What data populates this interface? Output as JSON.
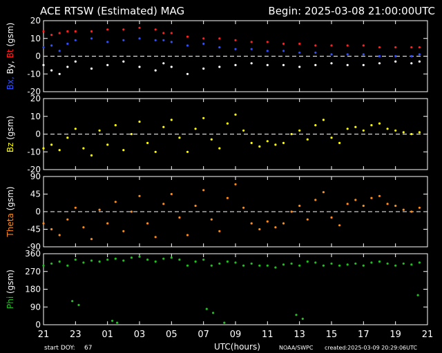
{
  "header": {
    "title": "ACE RTSW (Estimated) MAG",
    "begin": "Begin: 2025-03-08 21:00:00UTC"
  },
  "footer": {
    "start_doy_label": "start DOY:",
    "start_doy": "67",
    "xlabel": "UTC(hours)",
    "source": "NOAA/SWPC",
    "created": "created:2025-03-09 20:29:06UTC"
  },
  "x_ticks": [
    "21",
    "23",
    "01",
    "03",
    "05",
    "07",
    "09",
    "11",
    "13",
    "15",
    "17",
    "19",
    "21"
  ],
  "colors": {
    "bt": "#ff2020",
    "bx": "#3050ff",
    "by": "#ffffff",
    "bz": "#ffff00",
    "theta": "#ff8c1a",
    "phi": "#20c020",
    "axis": "#ffffff",
    "background": "#000000"
  },
  "chart_data": [
    {
      "type": "scatter",
      "panel": "btxy",
      "ylabel_parts": [
        {
          "text": "Bx,",
          "color": "#3050ff"
        },
        {
          "text": " By,",
          "color": "#ffffff"
        },
        {
          "text": " Bt",
          "color": "#ff2020"
        },
        {
          "text": "  (gsm)",
          "color": "#ffffff"
        }
      ],
      "ylim": [
        -20,
        20
      ],
      "yticks": [
        -20,
        -10,
        0,
        10,
        20
      ],
      "xlim": [
        0,
        24
      ],
      "zero_line": true,
      "series": [
        {
          "name": "Bt",
          "color": "#ff2020",
          "points": [
            [
              0,
              14
            ],
            [
              0.5,
              12
            ],
            [
              1,
              13
            ],
            [
              1.5,
              14
            ],
            [
              2,
              14
            ],
            [
              3,
              14
            ],
            [
              4,
              15
            ],
            [
              5,
              15
            ],
            [
              6,
              16
            ],
            [
              7,
              15
            ],
            [
              7.5,
              13
            ],
            [
              8,
              13
            ],
            [
              9,
              11
            ],
            [
              10,
              10
            ],
            [
              11,
              10
            ],
            [
              12,
              9
            ],
            [
              13,
              8
            ],
            [
              14,
              8
            ],
            [
              15,
              7
            ],
            [
              16,
              7
            ],
            [
              17,
              6
            ],
            [
              18,
              6
            ],
            [
              19,
              6
            ],
            [
              20,
              6
            ],
            [
              21,
              5
            ],
            [
              22,
              5
            ],
            [
              23,
              5
            ],
            [
              23.5,
              5
            ]
          ]
        },
        {
          "name": "Bx",
          "color": "#3050ff",
          "points": [
            [
              0,
              5
            ],
            [
              0.5,
              6
            ],
            [
              1,
              3
            ],
            [
              1.5,
              7
            ],
            [
              2,
              9
            ],
            [
              3,
              10
            ],
            [
              4,
              8
            ],
            [
              5,
              9
            ],
            [
              6,
              10
            ],
            [
              7,
              9
            ],
            [
              7.5,
              9
            ],
            [
              8,
              8
            ],
            [
              9,
              6
            ],
            [
              10,
              7
            ],
            [
              11,
              5
            ],
            [
              12,
              4
            ],
            [
              13,
              4
            ],
            [
              14,
              3
            ],
            [
              15,
              3
            ],
            [
              16,
              2
            ],
            [
              17,
              2
            ],
            [
              18,
              1
            ],
            [
              19,
              1
            ],
            [
              20,
              1
            ],
            [
              21,
              0
            ],
            [
              22,
              0
            ],
            [
              23,
              0
            ],
            [
              23.5,
              1
            ]
          ]
        },
        {
          "name": "By",
          "color": "#ffffff",
          "points": [
            [
              0,
              -5
            ],
            [
              0.5,
              -8
            ],
            [
              1,
              -10
            ],
            [
              1.5,
              -6
            ],
            [
              2,
              -3
            ],
            [
              3,
              -7
            ],
            [
              4,
              -5
            ],
            [
              5,
              -3
            ],
            [
              6,
              -6
            ],
            [
              7,
              -8
            ],
            [
              7.5,
              -4
            ],
            [
              8,
              -6
            ],
            [
              9,
              -10
            ],
            [
              10,
              -7
            ],
            [
              11,
              -6
            ],
            [
              12,
              -5
            ],
            [
              13,
              -4
            ],
            [
              14,
              -5
            ],
            [
              15,
              -5
            ],
            [
              16,
              -6
            ],
            [
              17,
              -5
            ],
            [
              18,
              -4
            ],
            [
              19,
              -5
            ],
            [
              20,
              -5
            ],
            [
              21,
              -4
            ],
            [
              22,
              -3
            ],
            [
              23,
              -4
            ],
            [
              23.5,
              -3
            ]
          ]
        }
      ]
    },
    {
      "type": "scatter",
      "panel": "bz",
      "ylabel_parts": [
        {
          "text": "Bz",
          "color": "#ffff00"
        },
        {
          "text": "  (gsm)",
          "color": "#ffffff"
        }
      ],
      "ylim": [
        -20,
        20
      ],
      "yticks": [
        -20,
        -10,
        0,
        10,
        20
      ],
      "xlim": [
        0,
        24
      ],
      "zero_line": true,
      "series": [
        {
          "name": "Bz",
          "color": "#ffff00",
          "points": [
            [
              0,
              -8
            ],
            [
              0.5,
              -6
            ],
            [
              1,
              -9
            ],
            [
              1.5,
              -2
            ],
            [
              2,
              3
            ],
            [
              2.5,
              -8
            ],
            [
              3,
              -12
            ],
            [
              3.5,
              2
            ],
            [
              4,
              -6
            ],
            [
              4.5,
              5
            ],
            [
              5,
              -9
            ],
            [
              5.5,
              0
            ],
            [
              6,
              7
            ],
            [
              6.5,
              -5
            ],
            [
              7,
              -10
            ],
            [
              7.5,
              4
            ],
            [
              8,
              8
            ],
            [
              8.5,
              -2
            ],
            [
              9,
              -10
            ],
            [
              9.5,
              3
            ],
            [
              10,
              9
            ],
            [
              10.5,
              -3
            ],
            [
              11,
              -8
            ],
            [
              11.5,
              6
            ],
            [
              12,
              11
            ],
            [
              12.5,
              2
            ],
            [
              13,
              -5
            ],
            [
              13.5,
              -7
            ],
            [
              14,
              -4
            ],
            [
              14.5,
              -6
            ],
            [
              15,
              -5
            ],
            [
              15.5,
              0
            ],
            [
              16,
              2
            ],
            [
              16.5,
              -3
            ],
            [
              17,
              5
            ],
            [
              17.5,
              8
            ],
            [
              18,
              -2
            ],
            [
              18.5,
              -5
            ],
            [
              19,
              3
            ],
            [
              19.5,
              4
            ],
            [
              20,
              2
            ],
            [
              20.5,
              5
            ],
            [
              21,
              6
            ],
            [
              21.5,
              3
            ],
            [
              22,
              2
            ],
            [
              22.5,
              1
            ],
            [
              23,
              0
            ],
            [
              23.5,
              1
            ]
          ]
        }
      ]
    },
    {
      "type": "scatter",
      "panel": "theta",
      "ylabel_parts": [
        {
          "text": "Theta",
          "color": "#ff8c1a"
        },
        {
          "text": "  (gsm)",
          "color": "#ffffff"
        }
      ],
      "ylim": [
        -90,
        90
      ],
      "yticks": [
        -90,
        -45,
        0,
        45,
        90
      ],
      "xlim": [
        0,
        24
      ],
      "zero_line": true,
      "series": [
        {
          "name": "Theta",
          "color": "#ff8c1a",
          "points": [
            [
              0,
              -30
            ],
            [
              0.5,
              -45
            ],
            [
              1,
              -60
            ],
            [
              1.5,
              -20
            ],
            [
              2,
              10
            ],
            [
              2.5,
              -40
            ],
            [
              3,
              -70
            ],
            [
              3.5,
              5
            ],
            [
              4,
              -30
            ],
            [
              4.5,
              25
            ],
            [
              5,
              -50
            ],
            [
              5.5,
              0
            ],
            [
              6,
              40
            ],
            [
              6.5,
              -30
            ],
            [
              7,
              -65
            ],
            [
              7.5,
              20
            ],
            [
              8,
              45
            ],
            [
              8.5,
              -15
            ],
            [
              9,
              -60
            ],
            [
              9.5,
              15
            ],
            [
              10,
              55
            ],
            [
              10.5,
              -20
            ],
            [
              11,
              -50
            ],
            [
              11.5,
              35
            ],
            [
              12,
              70
            ],
            [
              12.5,
              10
            ],
            [
              13,
              -30
            ],
            [
              13.5,
              -45
            ],
            [
              14,
              -25
            ],
            [
              14.5,
              -40
            ],
            [
              15,
              -30
            ],
            [
              15.5,
              0
            ],
            [
              16,
              15
            ],
            [
              16.5,
              -20
            ],
            [
              17,
              30
            ],
            [
              17.5,
              50
            ],
            [
              18,
              -15
            ],
            [
              18.5,
              -35
            ],
            [
              19,
              20
            ],
            [
              19.5,
              30
            ],
            [
              20,
              15
            ],
            [
              20.5,
              35
            ],
            [
              21,
              40
            ],
            [
              21.5,
              20
            ],
            [
              22,
              15
            ],
            [
              22.5,
              5
            ],
            [
              23,
              0
            ],
            [
              23.5,
              10
            ]
          ]
        }
      ]
    },
    {
      "type": "scatter",
      "panel": "phi",
      "ylabel_parts": [
        {
          "text": "Phi",
          "color": "#20c020"
        },
        {
          "text": "  (gsm)",
          "color": "#ffffff"
        }
      ],
      "ylim": [
        0,
        360
      ],
      "yticks": [
        0,
        90,
        180,
        270,
        360
      ],
      "xlim": [
        0,
        24
      ],
      "zero_line": false,
      "series": [
        {
          "name": "Phi",
          "color": "#20c020",
          "points": [
            [
              0,
              300
            ],
            [
              0.5,
              310
            ],
            [
              1,
              320
            ],
            [
              1.5,
              300
            ],
            [
              2,
              330
            ],
            [
              2.5,
              315
            ],
            [
              3,
              325
            ],
            [
              3.5,
              320
            ],
            [
              4,
              330
            ],
            [
              4.5,
              335
            ],
            [
              5,
              325
            ],
            [
              5.5,
              340
            ],
            [
              6,
              345
            ],
            [
              6.5,
              330
            ],
            [
              7,
              320
            ],
            [
              7.5,
              335
            ],
            [
              8,
              340
            ],
            [
              8.5,
              330
            ],
            [
              9,
              300
            ],
            [
              9.5,
              320
            ],
            [
              10,
              330
            ],
            [
              10.5,
              300
            ],
            [
              11,
              310
            ],
            [
              11.5,
              320
            ],
            [
              12,
              315
            ],
            [
              12.5,
              300
            ],
            [
              13,
              310
            ],
            [
              13.5,
              300
            ],
            [
              14,
              300
            ],
            [
              14.5,
              290
            ],
            [
              15,
              305
            ],
            [
              15.5,
              310
            ],
            [
              16,
              300
            ],
            [
              16.5,
              320
            ],
            [
              17,
              315
            ],
            [
              17.5,
              300
            ],
            [
              18,
              310
            ],
            [
              18.5,
              300
            ],
            [
              19,
              305
            ],
            [
              19.5,
              310
            ],
            [
              20,
              300
            ],
            [
              20.5,
              315
            ],
            [
              21,
              320
            ],
            [
              21.5,
              310
            ],
            [
              22,
              300
            ],
            [
              22.5,
              310
            ],
            [
              23,
              305
            ],
            [
              23.5,
              315
            ]
          ]
        },
        {
          "name": "Phi-low",
          "color": "#20c020",
          "points": [
            [
              1.8,
              120
            ],
            [
              2.2,
              100
            ],
            [
              4.3,
              20
            ],
            [
              4.6,
              10
            ],
            [
              10.2,
              80
            ],
            [
              10.6,
              60
            ],
            [
              11.3,
              10
            ],
            [
              15.8,
              50
            ],
            [
              16.2,
              30
            ],
            [
              23.4,
              150
            ]
          ]
        }
      ]
    }
  ]
}
